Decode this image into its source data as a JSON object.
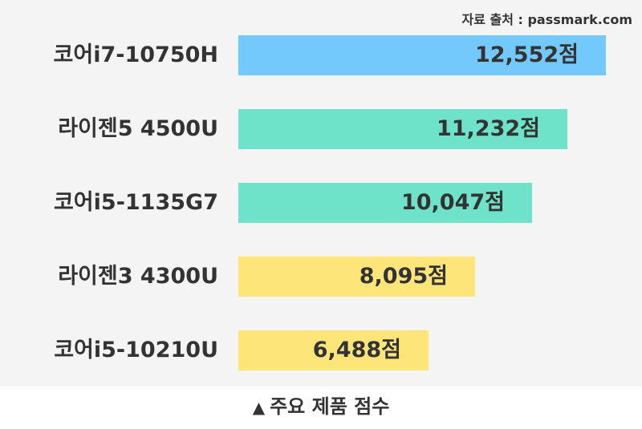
{
  "source": "자료 출처 : passmark.com",
  "caption": {
    "icon": "up-triangle-icon",
    "icon_glyph": "▲",
    "text": "주요 제품 점수"
  },
  "chart_data": {
    "type": "bar",
    "orientation": "horizontal",
    "categories": [
      "코어i7-10750H",
      "라이젠5 4500U",
      "코어i5-1135G7",
      "라이젠3 4300U",
      "코어i5-10210U"
    ],
    "values": [
      12552,
      11232,
      10047,
      8095,
      6488
    ],
    "value_labels": [
      "12,552점",
      "11,232점",
      "10,047점",
      "8,095점",
      "6,488점"
    ],
    "colors": [
      "#74c9fc",
      "#6ee3c9",
      "#6ee3c9",
      "#fde57a",
      "#fde57a"
    ],
    "xlim": [
      0,
      13000
    ],
    "grid": false,
    "legend": "none"
  }
}
